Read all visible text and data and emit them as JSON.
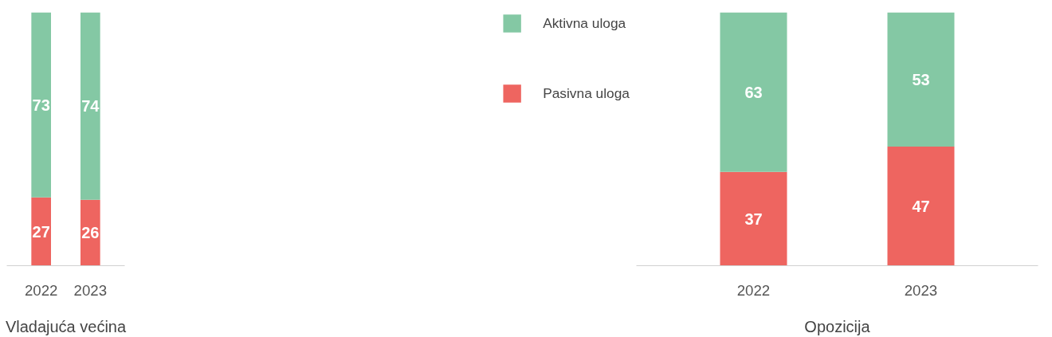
{
  "chart_data": [
    {
      "type": "bar",
      "stacked": true,
      "xlabel": "Vladajuća većina",
      "categories": [
        "2022",
        "2023"
      ],
      "data_labels": true,
      "legend": "right",
      "grid": false,
      "series": [
        {
          "name": "Pasivna uloga",
          "color": "#ee6560",
          "values": [
            27,
            26
          ]
        },
        {
          "name": "Aktivna uloga",
          "color": "#84c8a4",
          "values": [
            73,
            74
          ]
        }
      ]
    },
    {
      "type": "bar",
      "stacked": true,
      "xlabel": "Opozicija",
      "categories": [
        "2022",
        "2023"
      ],
      "data_labels": true,
      "grid": false,
      "series": [
        {
          "color": "#ee6560",
          "values": [
            37,
            47
          ]
        },
        {
          "color": "#84c8a4",
          "values": [
            63,
            53
          ]
        }
      ]
    }
  ]
}
